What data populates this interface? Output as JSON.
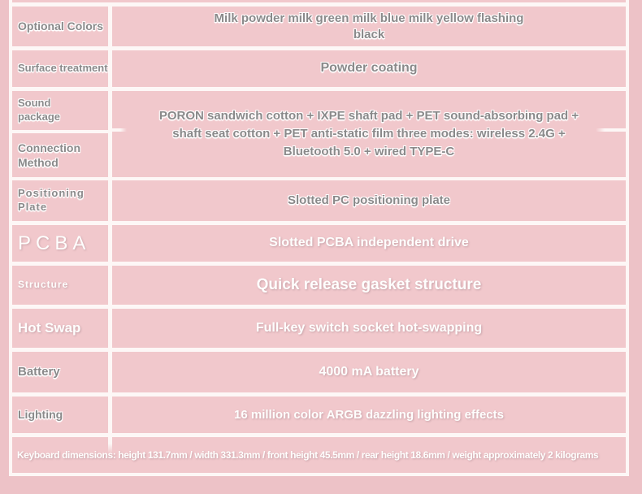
{
  "colors": {
    "background_pink": "#edc2c7",
    "cell_pink": "#f1c8cc",
    "grid_white": "#fdf7f6",
    "gray_text": "#8a898a",
    "white_text": "#fefefd"
  },
  "table": {
    "rows": [
      {
        "label": "Optional Colors",
        "lines": [
          "Milk powder milk green milk blue milk yellow flashing",
          "black"
        ]
      },
      {
        "label": "Surface treatment",
        "value": "Powder coating"
      },
      {
        "label": "Sound package",
        "lines": [
          "PORON sandwich cotton + IXPE shaft pad + PET sound-absorbing pad +",
          "shaft seat cotton + PET anti-static film three modes: wireless 2.4G +",
          "Bluetooth 5.0 + wired TYPE-C"
        ]
      },
      {
        "label": "Connection Method"
      },
      {
        "label": "Positioning Plate",
        "value": "Slotted PC positioning plate"
      },
      {
        "label": "PCBA",
        "value": "Slotted PCBA independent drive"
      },
      {
        "label": "Structure",
        "value": "Quick release gasket structure"
      },
      {
        "label": "Hot Swap",
        "value": "Full-key switch socket hot-swapping"
      },
      {
        "label": "Battery",
        "value": "4000 mA battery"
      },
      {
        "label": "Lighting",
        "value": "16 million color ARGB dazzling lighting effects"
      }
    ],
    "footer": "Keyboard dimensions: height 131.7mm / width 331.3mm / front height 45.5mm / rear height 18.6mm / weight approximately 2 kilograms"
  }
}
